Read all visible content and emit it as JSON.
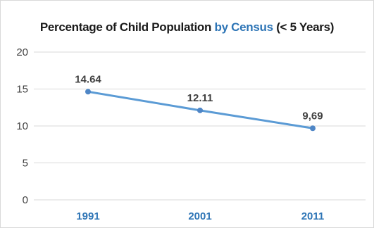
{
  "chart_data": {
    "type": "line",
    "title": {
      "part1": "Percentage of Child Population ",
      "part2": "by Census",
      "part3": " (< 5 Years)"
    },
    "categories": [
      "1991",
      "2001",
      "2011"
    ],
    "values": [
      14.64,
      12.11,
      9.69
    ],
    "data_labels": [
      "14.64",
      "12.11",
      "9,69"
    ],
    "y_ticks": [
      "0",
      "5",
      "10",
      "15",
      "20"
    ],
    "ylim": [
      0,
      20
    ],
    "grid": true,
    "legend": "none",
    "xlabel": "",
    "ylabel": ""
  },
  "colors": {
    "line": "#5b9bd5",
    "marker": "#4f86c6",
    "title_accent": "#2e75b6",
    "x_tick": "#2e75b6",
    "grid": "#d9d9d9"
  }
}
